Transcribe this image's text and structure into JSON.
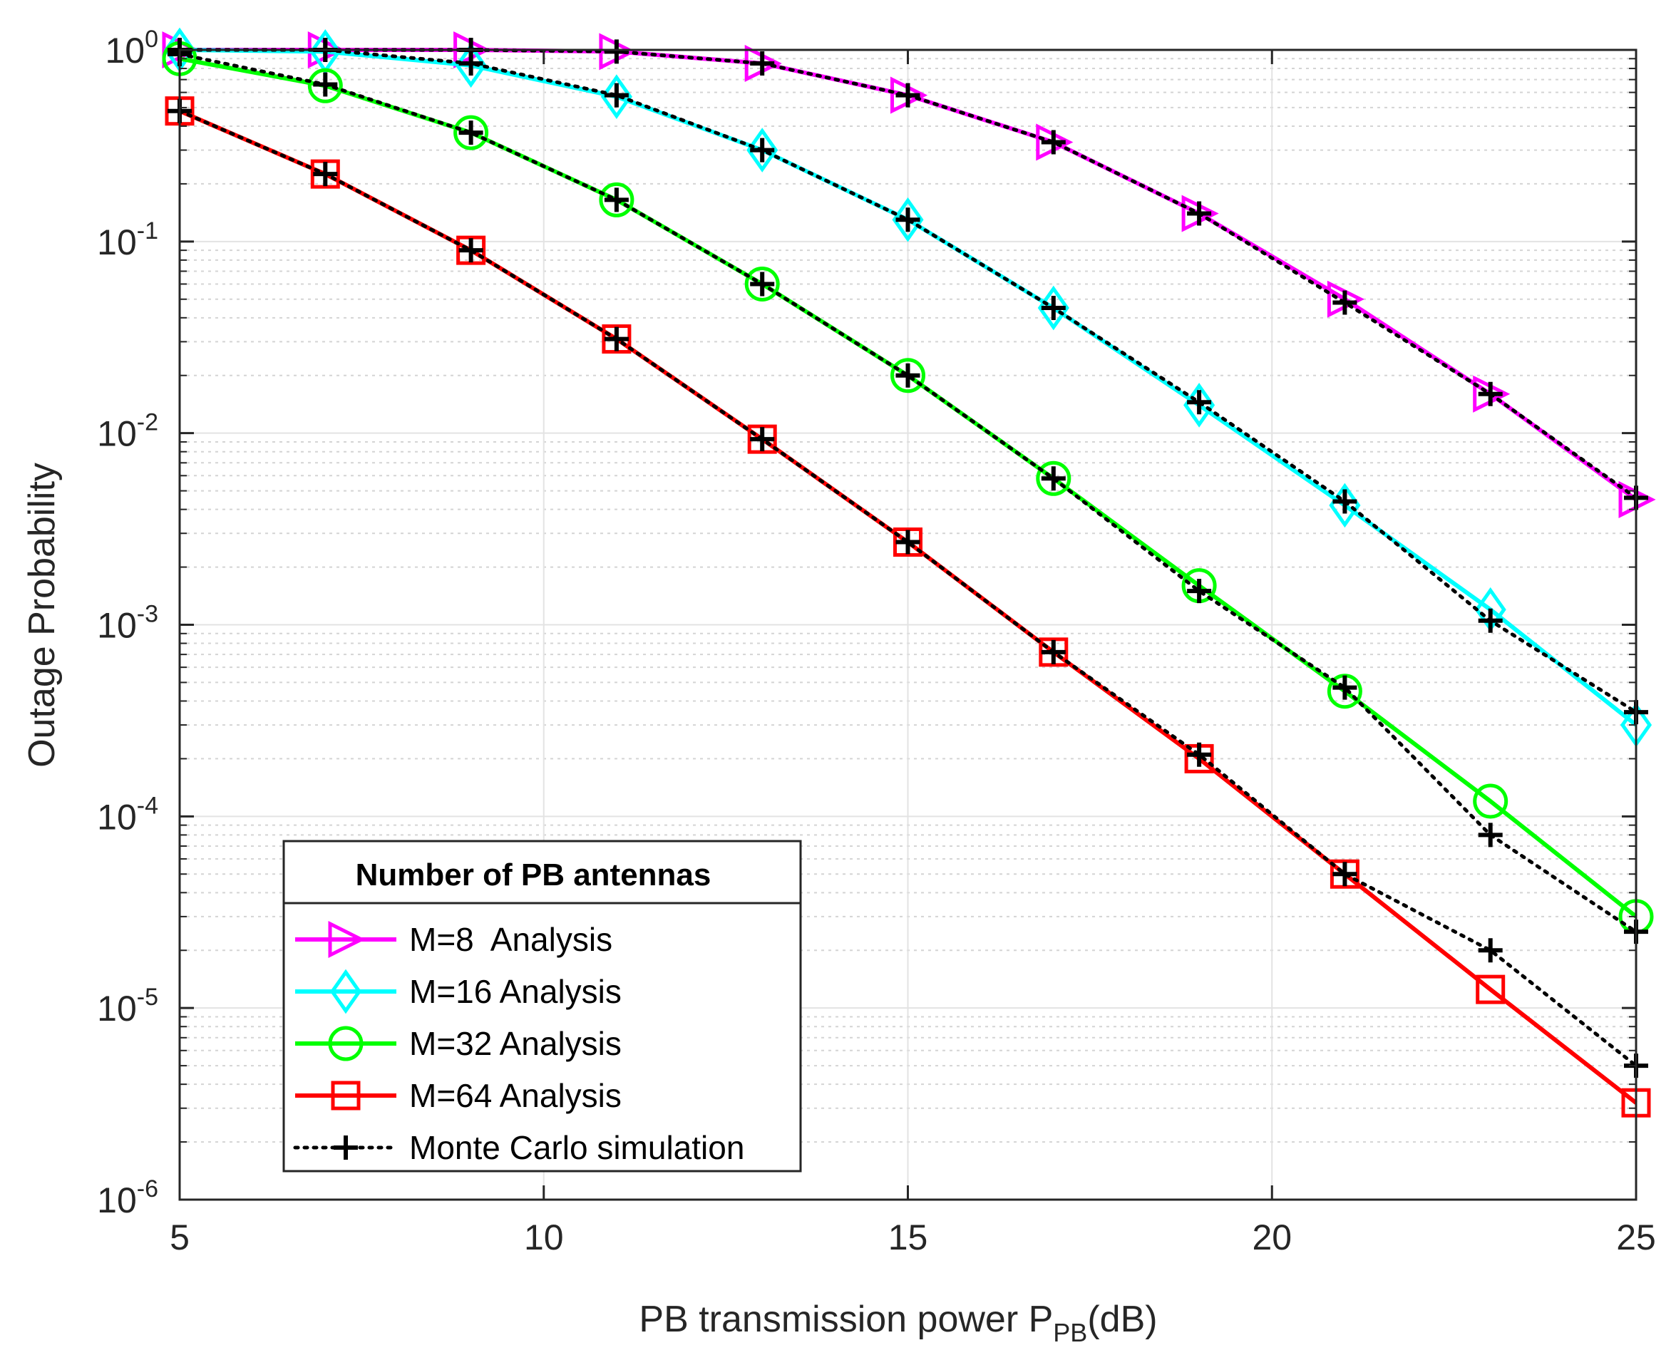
{
  "chart_data": {
    "type": "line",
    "title": "",
    "xlabel": "PB transmission power P",
    "xlabel_subscript": "PB",
    "xlabel_suffix": "(dB)",
    "ylabel": "Outage Probability",
    "xlim": [
      5,
      25
    ],
    "ylim": [
      1e-06,
      1
    ],
    "yscale": "log",
    "grid": true,
    "x_ticks": [
      5,
      10,
      15,
      20,
      25
    ],
    "y_tick_exponents": [
      0,
      -1,
      -2,
      -3,
      -4,
      -5,
      -6
    ],
    "y_tick_base": "10",
    "x": [
      5,
      7,
      9,
      11,
      13,
      15,
      17,
      19,
      21,
      23,
      25
    ],
    "legend_title": "Number of PB antennas",
    "legend_position": "bottom-left",
    "series": [
      {
        "name": "M=8  Analysis",
        "kind": "analysis",
        "color": "#ff00ff",
        "marker": "triangle-right",
        "values": [
          1.0,
          1.0,
          1.0,
          0.98,
          0.85,
          0.58,
          0.33,
          0.14,
          0.05,
          0.016,
          0.0045
        ]
      },
      {
        "name": "M=16 Analysis",
        "kind": "analysis",
        "color": "#00ffff",
        "marker": "diamond",
        "values": [
          1.0,
          0.98,
          0.83,
          0.57,
          0.3,
          0.13,
          0.045,
          0.014,
          0.0042,
          0.0012,
          0.0003
        ]
      },
      {
        "name": "M=32 Analysis",
        "kind": "analysis",
        "color": "#00ff00",
        "marker": "circle",
        "values": [
          0.9,
          0.65,
          0.37,
          0.165,
          0.06,
          0.02,
          0.0058,
          0.0016,
          0.00045,
          0.00012,
          3e-05
        ]
      },
      {
        "name": "M=64 Analysis",
        "kind": "analysis",
        "color": "#ff0000",
        "marker": "square",
        "values": [
          0.48,
          0.225,
          0.09,
          0.031,
          0.0093,
          0.0027,
          0.00072,
          0.0002,
          5e-05,
          1.25e-05,
          3.2e-06
        ]
      }
    ],
    "simulation": {
      "name": "Monte Carlo simulation",
      "color": "#000000",
      "marker": "plus",
      "series": [
        [
          1.0,
          1.0,
          1.0,
          0.98,
          0.85,
          0.58,
          0.33,
          0.14,
          0.048,
          0.016,
          0.0046
        ],
        [
          1.0,
          1.0,
          0.85,
          0.58,
          0.3,
          0.13,
          0.045,
          0.0145,
          0.0044,
          0.00105,
          0.00035
        ],
        [
          0.95,
          0.66,
          0.37,
          0.165,
          0.06,
          0.02,
          0.0058,
          0.0015,
          0.00047,
          8e-05,
          2.5e-05
        ],
        [
          0.48,
          0.225,
          0.09,
          0.031,
          0.0093,
          0.0027,
          0.00072,
          0.00021,
          5e-05,
          2e-05,
          5e-06
        ]
      ]
    }
  }
}
